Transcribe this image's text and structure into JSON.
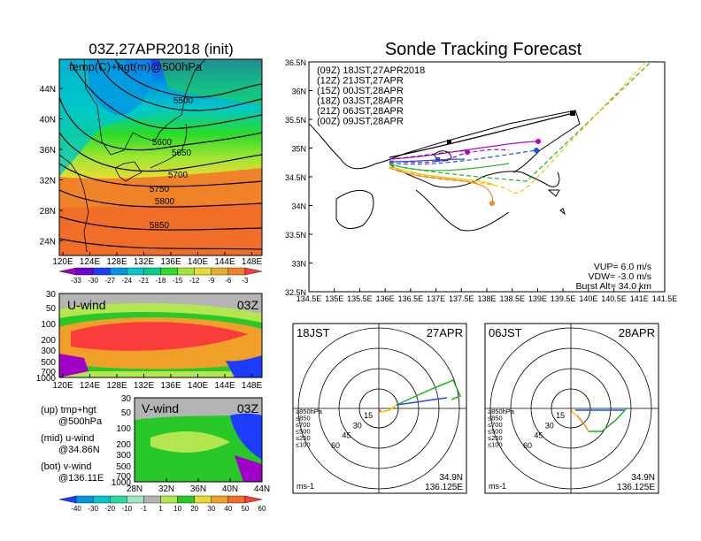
{
  "left_map": {
    "title": "03Z,27APR2018 (init)",
    "subtitle": "temp(C)+hgt(m)@500hPa",
    "lat_ticks": [
      "44N",
      "40N",
      "36N",
      "32N",
      "28N",
      "24N"
    ],
    "lon_ticks": [
      "120E",
      "124E",
      "128E",
      "132E",
      "136E",
      "140E",
      "144E",
      "148E"
    ],
    "contour_labels": [
      "5500",
      "5600",
      "5650",
      "5700",
      "5750",
      "5800",
      "5850"
    ],
    "colorbar_labels": [
      "-33",
      "-30",
      "-27",
      "-24",
      "-21",
      "-18",
      "-15",
      "-12",
      "-9",
      "-6",
      "-3"
    ],
    "colorbar_colors": [
      "#a000c8",
      "#6e00dc",
      "#1e3cff",
      "#0096e6",
      "#00c8c8",
      "#00d28c",
      "#28dc28",
      "#a0e632",
      "#e6dc32",
      "#e6af2d",
      "#f08228",
      "#fa3c3c"
    ]
  },
  "uwind": {
    "title": "U-wind",
    "time": "03Z",
    "y_ticks": [
      "30",
      "50",
      "100",
      "200",
      "300",
      "500",
      "700",
      "1000"
    ],
    "x_ticks": [
      "120E",
      "124E",
      "128E",
      "132E",
      "136E",
      "140E",
      "144E",
      "148E"
    ]
  },
  "vwind": {
    "title": "V-wind",
    "time": "03Z",
    "y_ticks": [
      "30",
      "50",
      "100",
      "200",
      "300",
      "500",
      "700",
      "1000"
    ],
    "x_ticks": [
      "28N",
      "32N",
      "36N",
      "40N",
      "44N"
    ]
  },
  "legend_text": {
    "up": "(up) tmp+hgt",
    "up2": "@500hPa",
    "mid": "(mid) u-wind",
    "mid2": "@34.86N",
    "bot": "(bot) v-wind",
    "bot2": "@136.11E"
  },
  "wind_colorbar_labels": [
    "-40",
    "-30",
    "-20",
    "-10",
    "-1",
    "1",
    "10",
    "20",
    "30",
    "40",
    "50",
    "60"
  ],
  "wind_colorbar_colors": [
    "#1e3cff",
    "#0096e6",
    "#00c8c8",
    "#28dc9b",
    "#a0e6be",
    "#b4b4b4",
    "#b4e650",
    "#28c828",
    "#e6dc32",
    "#f0a028",
    "#f06e28",
    "#fa3c3c"
  ],
  "tracking": {
    "title": "Sonde Tracking Forecast",
    "lat_ticks": [
      "36.5N",
      "36N",
      "35.5N",
      "35N",
      "34.5N",
      "34N",
      "33.5N",
      "33N",
      "32.5N"
    ],
    "lon_ticks": [
      "134.5E",
      "135E",
      "135.5E",
      "136E",
      "136.5E",
      "137E",
      "137.5E",
      "138E",
      "138.5E",
      "139E",
      "139.5E",
      "140E",
      "140.5E",
      "141E",
      "141.5E"
    ],
    "runs": [
      {
        "label": "(09Z)  18JST,27APR2018",
        "color": "#000000"
      },
      {
        "label": "(12Z)  21JST,27APR",
        "color": "#b400c8"
      },
      {
        "label": "(15Z)  00JST,28APR",
        "color": "#1e50e6"
      },
      {
        "label": "(18Z)  03JST,28APR",
        "color": "#1eb41e"
      },
      {
        "label": "(21Z)  06JST,28APR",
        "color": "#f0c800"
      },
      {
        "label": "(00Z)  09JST,28APR",
        "color": "#f08c28"
      }
    ],
    "params": {
      "vup": "VUP=  6.0  m/s",
      "vdw": "VDW= -3.0  m/s",
      "burst": "Burst Alt=  34.0  km"
    }
  },
  "hodo1": {
    "time_label": "18JST",
    "date_label": "27APR",
    "rings": [
      "15",
      "30",
      "45",
      "60"
    ],
    "levels": [
      "≥850hPa",
      "≤850",
      "≤700",
      "≤500",
      "≤250",
      "≤100"
    ],
    "level_colors": [
      "#fa3c3c",
      "#f08c28",
      "#f0c800",
      "#1eb41e",
      "#1e50e6",
      "#00aadc"
    ],
    "unit": "ms-1",
    "lat": "34.9N",
    "lon": "136.125E"
  },
  "hodo2": {
    "time_label": "06JST",
    "date_label": "28APR",
    "rings": [
      "15",
      "30",
      "45",
      "60"
    ],
    "levels": [
      "≥850hPa",
      "≤850",
      "≤700",
      "≤500",
      "≤250",
      "≤100"
    ],
    "level_colors": [
      "#fa3c3c",
      "#f08c28",
      "#f0c800",
      "#1eb41e",
      "#1e50e6",
      "#00aadc"
    ],
    "unit": "ms-1",
    "lat": "34.9N",
    "lon": "136.125E"
  }
}
